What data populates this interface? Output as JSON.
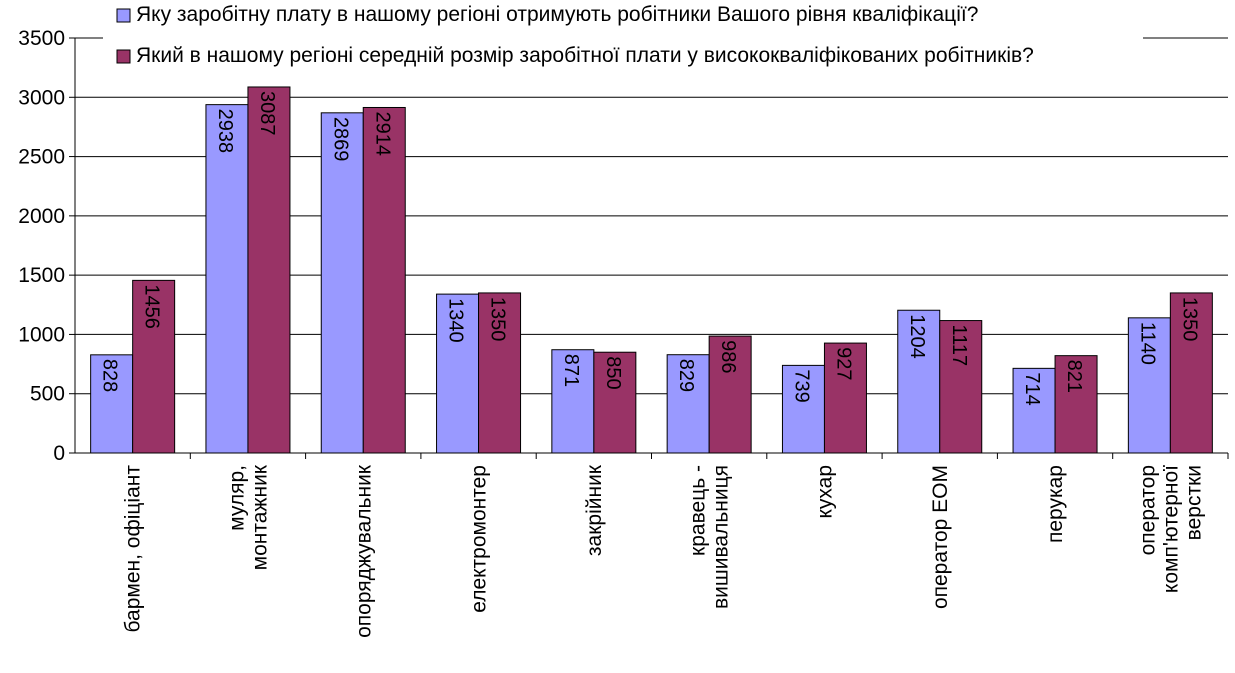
{
  "chart_data": {
    "type": "bar",
    "categories": [
      [
        "бармен, офіціант"
      ],
      [
        "муляр,",
        "монтажник"
      ],
      [
        "опоряджувальник"
      ],
      [
        "електромонтер"
      ],
      [
        "закрійник"
      ],
      [
        "кравець -",
        "вишивальниця"
      ],
      [
        "кухар"
      ],
      [
        "оператор ЕОМ"
      ],
      [
        "перукар"
      ],
      [
        "оператор",
        "комп'ютерної",
        "верстки"
      ]
    ],
    "series": [
      {
        "name": "Яку заробітну плату в нашому регіоні отримують робітники Вашого рівня кваліфікації?",
        "color": "#9999ff",
        "values": [
          828,
          2938,
          2869,
          1340,
          871,
          829,
          739,
          1204,
          714,
          1140
        ],
        "labels": [
          "828",
          "2938",
          "2869",
          "1340",
          "871",
          "829",
          "739",
          "1204",
          "714",
          "1140"
        ]
      },
      {
        "name": "Який в нашому регіоні середній розмір заробітної плати у висококваліфікованих робітників?",
        "color": "#993366",
        "values": [
          1456,
          3087,
          2914,
          1350,
          850,
          986,
          927,
          1117,
          821,
          1350
        ],
        "labels": [
          "1456",
          "3087",
          "2914",
          "1350",
          "850",
          "986",
          "927",
          "1117",
          "821",
          "1350"
        ]
      }
    ],
    "ylim": [
      0,
      3500
    ],
    "yticks": [
      "0",
      "500",
      "1000",
      "1500",
      "2000",
      "2500",
      "3000",
      "3500"
    ],
    "grid": true,
    "legend_position": "top"
  }
}
